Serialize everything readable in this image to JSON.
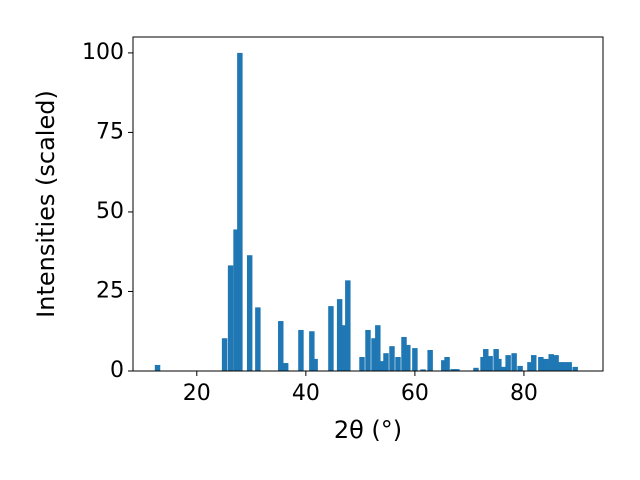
{
  "chart_data": {
    "type": "bar",
    "x_label": "2θ (°)",
    "y_label": "Intensities (scaled)",
    "color": "#1f77b4",
    "grid": false,
    "xlim": [
      8.3,
      94.5
    ],
    "ylim": [
      0,
      105
    ],
    "xticks": [
      20,
      40,
      60,
      80
    ],
    "yticks": [
      0,
      25,
      50,
      75,
      100
    ],
    "x": [
      12.8,
      25.1,
      26.2,
      27.2,
      27.9,
      29.7,
      31.2,
      35.4,
      36.3,
      39.1,
      41.1,
      41.7,
      44.6,
      46.2,
      47.0,
      47.7,
      50.3,
      51.4,
      52.5,
      53.2,
      53.8,
      54.7,
      55.8,
      56.9,
      58.0,
      58.7,
      60.0,
      61.5,
      62.8,
      65.3,
      65.9,
      67.0,
      67.7,
      71.2,
      72.5,
      73.0,
      73.8,
      74.9,
      75.4,
      76.2,
      77.1,
      78.2,
      79.3,
      81.1,
      81.8,
      83.1,
      84.0,
      85.0,
      85.9,
      86.6,
      87.5,
      88.3,
      89.4
    ],
    "values": [
      1.9,
      10.3,
      33.2,
      44.5,
      100,
      36.4,
      20,
      15.7,
      2.5,
      12.9,
      12.5,
      3.8,
      20.4,
      22.6,
      14.4,
      28.5,
      4.4,
      12.9,
      10.3,
      14.4,
      3.1,
      5.6,
      7.8,
      4.4,
      10.7,
      8.2,
      7.2,
      0.5,
      6.6,
      3.4,
      4.4,
      0.6,
      0.6,
      1.0,
      4.4,
      6.9,
      4.7,
      6.9,
      3.8,
      1.3,
      5.0,
      5.6,
      1.6,
      2.8,
      5.0,
      4.4,
      3.8,
      5.3,
      5.0,
      2.8,
      2.8,
      2.8,
      1.3
    ]
  }
}
